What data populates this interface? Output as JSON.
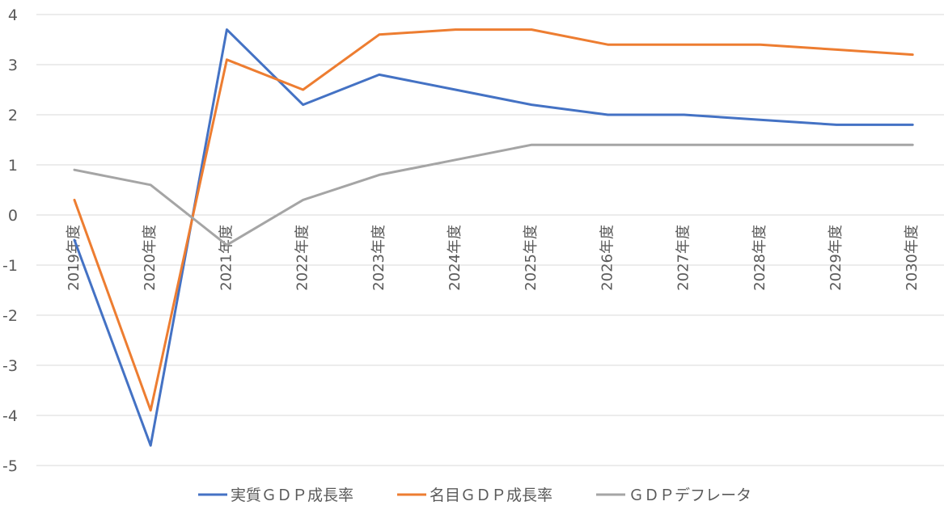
{
  "chart_data": {
    "type": "line",
    "categories": [
      "2019年度",
      "2020年度",
      "2021年度",
      "2022年度",
      "2023年度",
      "2024年度",
      "2025年度",
      "2026年度",
      "2027年度",
      "2028年度",
      "2029年度",
      "2030年度"
    ],
    "series": [
      {
        "name": "実質ＧＤＰ成長率",
        "color": "#4472C4",
        "values": [
          -0.5,
          -4.6,
          3.7,
          2.2,
          2.8,
          2.5,
          2.2,
          2.0,
          2.0,
          1.9,
          1.8,
          1.8
        ]
      },
      {
        "name": "名目ＧＤＰ成長率",
        "color": "#ED7D31",
        "values": [
          0.3,
          -3.9,
          3.1,
          2.5,
          3.6,
          3.7,
          3.7,
          3.4,
          3.4,
          3.4,
          3.3,
          3.2
        ]
      },
      {
        "name": "ＧＤＰデフレータ",
        "color": "#A5A5A5",
        "values": [
          0.9,
          0.6,
          -0.6,
          0.3,
          0.8,
          1.1,
          1.4,
          1.4,
          1.4,
          1.4,
          1.4,
          1.4
        ]
      }
    ],
    "yticks": [
      "4",
      "3",
      "2",
      "1",
      "0",
      "-1",
      "-2",
      "-3",
      "-4",
      "-5"
    ],
    "ylim": [
      -5,
      4
    ],
    "grid": true,
    "legend_position": "bottom"
  }
}
